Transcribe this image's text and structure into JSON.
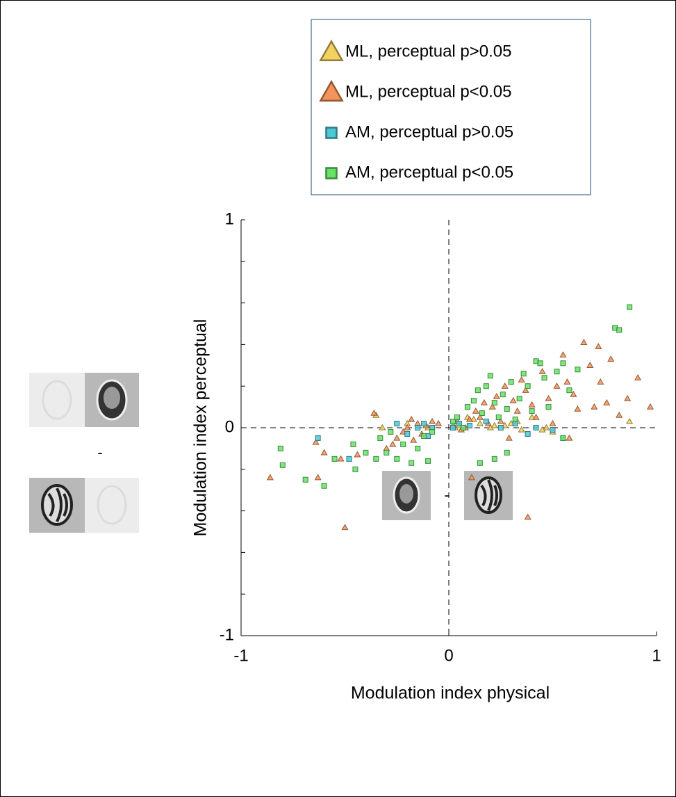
{
  "chart_data": {
    "type": "scatter",
    "xlabel": "Modulation index physical",
    "ylabel": "Modulation index perceptual",
    "xlim": [
      -1,
      1
    ],
    "ylim": [
      -1,
      1
    ],
    "xticks": [
      -1,
      0,
      1
    ],
    "yticks": [
      -1,
      0,
      1
    ],
    "yminorticks": [
      -0.8,
      -0.6,
      -0.4,
      -0.2,
      0.2,
      0.4,
      0.6,
      0.8
    ],
    "annotations": [
      "-",
      "-"
    ],
    "series": [
      {
        "name": "ML, perceptual p>0.05",
        "marker": "triangle",
        "color": "#f3d160",
        "x": [
          0.87,
          0.47,
          0.35,
          0.27,
          0.15,
          0.09,
          0.05,
          -0.32,
          -0.2,
          -0.35,
          0.33,
          0.5,
          0.2,
          0.12,
          0.4,
          0.45,
          0.03,
          -0.1,
          0.22,
          0.3
        ],
        "y": [
          0.03,
          0.0,
          -0.01,
          0.01,
          0.02,
          0.05,
          0.01,
          0.0,
          0.02,
          0.06,
          0.03,
          -0.02,
          0.0,
          0.04,
          0.05,
          -0.01,
          0.0,
          0.0,
          0.01,
          0.02
        ]
      },
      {
        "name": "ML, perceptual p<0.05",
        "marker": "triangle",
        "color": "#f4945a",
        "x": [
          -0.86,
          -0.64,
          -0.6,
          -0.63,
          -0.5,
          -0.52,
          -0.44,
          -0.36,
          -0.3,
          -0.27,
          -0.25,
          -0.22,
          -0.2,
          -0.18,
          -0.17,
          -0.15,
          -0.13,
          -0.11,
          -0.08,
          -0.05,
          0.02,
          0.04,
          0.06,
          0.08,
          0.1,
          0.11,
          0.13,
          0.15,
          0.17,
          0.19,
          0.21,
          0.23,
          0.25,
          0.27,
          0.29,
          0.31,
          0.33,
          0.35,
          0.37,
          0.38,
          0.4,
          0.42,
          0.45,
          0.48,
          0.5,
          0.52,
          0.55,
          0.57,
          0.6,
          0.62,
          0.65,
          0.68,
          0.7,
          0.73,
          0.76,
          0.78,
          0.86,
          0.91,
          0.97,
          0.82,
          0.72,
          0.58
        ],
        "y": [
          -0.24,
          -0.07,
          -0.12,
          -0.24,
          -0.48,
          -0.15,
          -0.13,
          0.07,
          -0.1,
          -0.08,
          -0.05,
          -0.02,
          0.0,
          0.04,
          -0.06,
          0.02,
          -0.03,
          0.01,
          0.03,
          0.02,
          0.01,
          0.03,
          -0.01,
          0.0,
          0.04,
          -0.24,
          0.08,
          0.05,
          0.12,
          0.02,
          0.1,
          0.15,
          0.03,
          0.2,
          -0.05,
          0.13,
          0.08,
          0.23,
          0.18,
          -0.43,
          0.11,
          0.05,
          0.27,
          0.14,
          0.02,
          0.2,
          0.35,
          0.22,
          0.16,
          0.09,
          0.41,
          0.3,
          0.1,
          0.22,
          0.12,
          0.33,
          0.14,
          0.24,
          0.1,
          0.06,
          0.39,
          -0.05
        ]
      },
      {
        "name": "AM, perceptual p>0.05",
        "marker": "square",
        "color": "#4cc8d8",
        "x": [
          -0.63,
          -0.48,
          -0.25,
          -0.2,
          -0.15,
          -0.12,
          -0.1,
          -0.08,
          0.02,
          0.05,
          0.1,
          0.18,
          0.25,
          0.32,
          0.38,
          0.5,
          0.55,
          0.42
        ],
        "y": [
          -0.05,
          -0.15,
          0.02,
          -0.03,
          0.0,
          0.02,
          -0.04,
          0.0,
          0.0,
          0.02,
          0.01,
          0.03,
          0.0,
          0.02,
          -0.03,
          -0.01,
          -0.05,
          0.0
        ]
      },
      {
        "name": "AM, perceptual p<0.05",
        "marker": "square",
        "color": "#66e366",
        "x": [
          -0.81,
          -0.8,
          -0.69,
          -0.6,
          -0.55,
          -0.46,
          -0.45,
          -0.4,
          -0.35,
          -0.33,
          -0.3,
          -0.28,
          -0.25,
          -0.22,
          -0.18,
          -0.15,
          -0.12,
          -0.1,
          -0.08,
          0.02,
          0.04,
          0.07,
          0.09,
          0.12,
          0.14,
          0.16,
          0.18,
          0.2,
          0.22,
          0.24,
          0.26,
          0.28,
          0.3,
          0.32,
          0.34,
          0.36,
          0.38,
          0.4,
          0.42,
          0.44,
          0.46,
          0.48,
          0.52,
          0.55,
          0.58,
          0.55,
          0.15,
          0.22,
          0.28,
          0.8,
          0.82,
          0.87,
          0.62
        ],
        "y": [
          -0.1,
          -0.18,
          -0.25,
          -0.28,
          -0.15,
          -0.08,
          -0.2,
          -0.12,
          -0.15,
          -0.05,
          -0.12,
          -0.02,
          -0.15,
          -0.08,
          -0.17,
          -0.1,
          -0.04,
          -0.16,
          -0.02,
          0.03,
          0.05,
          0.0,
          0.1,
          0.13,
          0.18,
          0.07,
          0.2,
          0.25,
          0.12,
          0.05,
          0.16,
          0.09,
          0.22,
          0.04,
          0.14,
          0.26,
          0.2,
          0.08,
          0.32,
          0.31,
          0.24,
          0.1,
          0.27,
          0.31,
          0.18,
          -0.05,
          -0.17,
          -0.15,
          -0.12,
          0.48,
          0.47,
          0.58,
          0.28
        ]
      }
    ]
  }
}
